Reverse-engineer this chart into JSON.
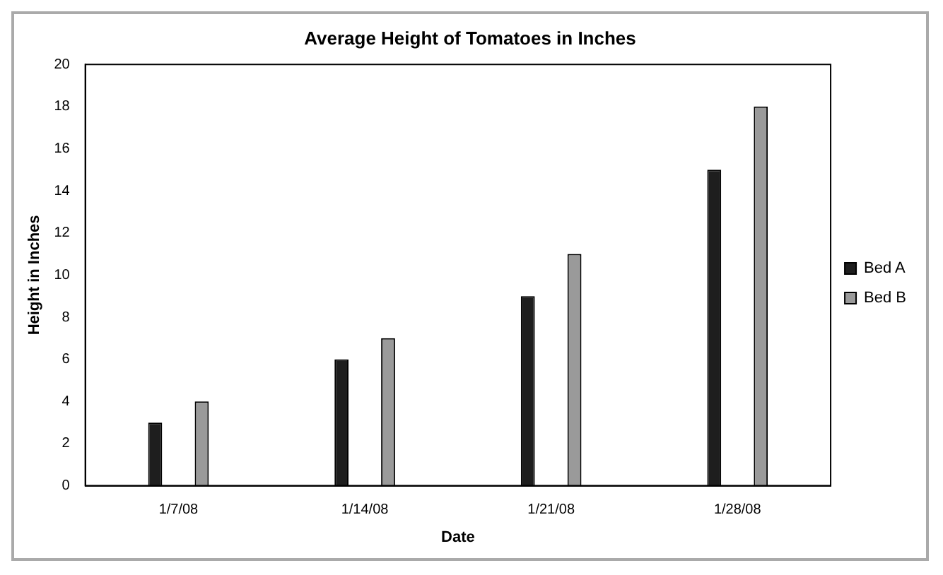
{
  "chart_data": {
    "type": "bar",
    "title": "Average Height of Tomatoes in Inches",
    "xlabel": "Date",
    "ylabel": "Height in Inches",
    "categories": [
      "1/7/08",
      "1/14/08",
      "1/21/08",
      "1/28/08"
    ],
    "series": [
      {
        "name": "Bed A",
        "color": "#1e1e1e",
        "values": [
          3,
          6,
          9,
          15
        ]
      },
      {
        "name": "Bed B",
        "color": "#9a9a9a",
        "values": [
          4,
          7,
          11,
          18
        ]
      }
    ],
    "ylim": [
      0,
      20
    ],
    "yticks": [
      0,
      2,
      4,
      6,
      8,
      10,
      12,
      14,
      16,
      18,
      20
    ],
    "grid": false,
    "legend": "right"
  }
}
